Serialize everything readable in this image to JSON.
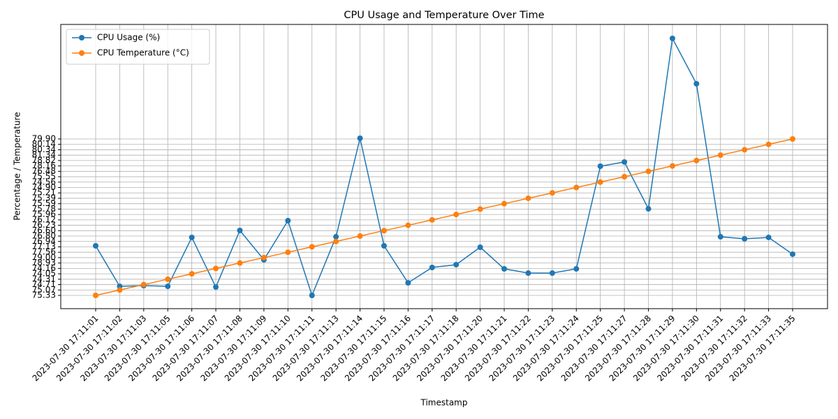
{
  "chart_data": {
    "type": "line",
    "title": "CPU Usage and Temperature Over Time",
    "x_label": "Timestamp",
    "y_label": "Percentage / Temperature",
    "categories": [
      "2023-07-30 17:11:01",
      "2023-07-30 17:11:02",
      "2023-07-30 17:11:03",
      "2023-07-30 17:11:05",
      "2023-07-30 17:11:06",
      "2023-07-30 17:11:07",
      "2023-07-30 17:11:08",
      "2023-07-30 17:11:09",
      "2023-07-30 17:11:10",
      "2023-07-30 17:11:11",
      "2023-07-30 17:11:13",
      "2023-07-30 17:11:14",
      "2023-07-30 17:11:15",
      "2023-07-30 17:11:16",
      "2023-07-30 17:11:17",
      "2023-07-30 17:11:18",
      "2023-07-30 17:11:20",
      "2023-07-30 17:11:21",
      "2023-07-30 17:11:22",
      "2023-07-30 17:11:23",
      "2023-07-30 17:11:24",
      "2023-07-30 17:11:25",
      "2023-07-30 17:11:27",
      "2023-07-30 17:11:28",
      "2023-07-30 17:11:29",
      "2023-07-30 17:11:30",
      "2023-07-30 17:11:31",
      "2023-07-30 17:11:32",
      "2023-07-30 17:11:33",
      "2023-07-30 17:11:35"
    ],
    "series": [
      {
        "name": "CPU Usage (%)",
        "color": "#1f77b4",
        "values": [
          9.19,
          1.68,
          1.81,
          1.68,
          10.75,
          1.55,
          12.04,
          6.6,
          13.85,
          0,
          10.87,
          29.13,
          9.19,
          2.33,
          5.18,
          5.7,
          8.93,
          4.92,
          4.14,
          4.14,
          4.92,
          23.95,
          24.73,
          16.05,
          47.64,
          39.23,
          10.87,
          10.49,
          10.75,
          7.64
        ]
      },
      {
        "name": "CPU Temperature (°C)",
        "color": "#ff7f0e",
        "values": [
          0,
          1,
          2,
          3,
          4,
          5,
          6,
          7,
          8,
          9,
          10,
          11,
          12,
          13,
          14,
          15,
          16,
          17,
          18,
          19,
          20,
          21,
          22,
          23,
          24,
          25,
          26,
          27,
          28,
          29
        ]
      }
    ],
    "ylim": [
      -2.46,
      50.23
    ],
    "yticks": [
      {
        "value": 0,
        "label": "75.33"
      },
      {
        "value": 1,
        "label": "75.07"
      },
      {
        "value": 2,
        "label": "74.71"
      },
      {
        "value": 3,
        "label": "74.31"
      },
      {
        "value": 4,
        "label": "74.05"
      },
      {
        "value": 5,
        "label": "74.16"
      },
      {
        "value": 6,
        "label": "78.93"
      },
      {
        "value": 7,
        "label": "79.00"
      },
      {
        "value": 8,
        "label": "77.56"
      },
      {
        "value": 9,
        "label": "77.13"
      },
      {
        "value": 10,
        "label": "76.94"
      },
      {
        "value": 11,
        "label": "76.80"
      },
      {
        "value": 12,
        "label": "76.60"
      },
      {
        "value": 13,
        "label": "76.23"
      },
      {
        "value": 14,
        "label": "76.12"
      },
      {
        "value": 15,
        "label": "75.96"
      },
      {
        "value": 16,
        "label": "75.78"
      },
      {
        "value": 17,
        "label": "75.59"
      },
      {
        "value": 18,
        "label": "75.39"
      },
      {
        "value": 19,
        "label": "75.21"
      },
      {
        "value": 20,
        "label": "74.90"
      },
      {
        "value": 21,
        "label": "74.56"
      },
      {
        "value": 22,
        "label": "75.55"
      },
      {
        "value": 23,
        "label": "76.48"
      },
      {
        "value": 24,
        "label": "78.16"
      },
      {
        "value": 25,
        "label": "78.82"
      },
      {
        "value": 26,
        "label": "81.34"
      },
      {
        "value": 27,
        "label": "80.34"
      },
      {
        "value": 28,
        "label": "80.14"
      },
      {
        "value": 29,
        "label": "79.90"
      }
    ],
    "grid": true,
    "legend": "upper left"
  }
}
